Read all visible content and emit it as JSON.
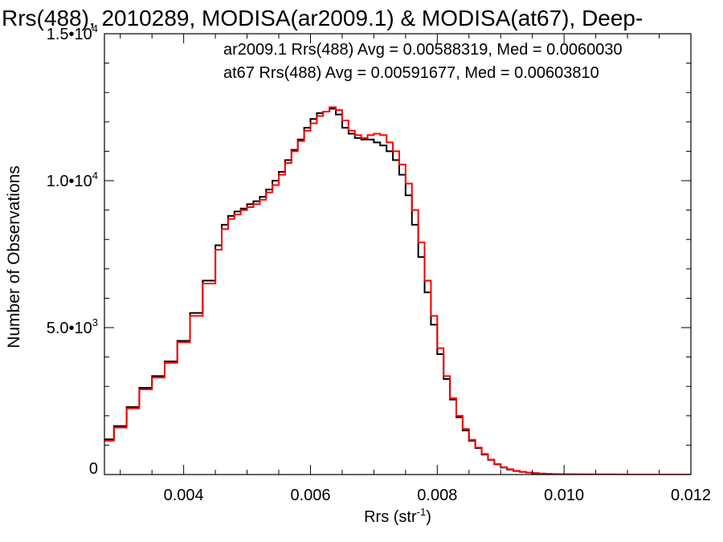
{
  "chart_data": {
    "type": "line",
    "style": "step-histogram",
    "title": "Rrs(488), 2010289, MODISA(ar2009.1) & MODISA(at67), Deep-",
    "xlabel": "Rrs (str",
    "xlabel_sup": "-1",
    "xlabel_close": ")",
    "ylabel": "Number of Observations",
    "xlim": [
      0.00275,
      0.012
    ],
    "ylim": [
      0,
      15000
    ],
    "x_ticks": [
      0.004,
      0.006,
      0.008,
      0.01,
      0.012
    ],
    "x_tick_labels": [
      "0.004",
      "0.006",
      "0.008",
      "0.010",
      "0.012"
    ],
    "y_ticks": [
      0,
      5000,
      10000,
      15000
    ],
    "y_tick_labels": [
      {
        "base": "0",
        "exp": ""
      },
      {
        "base": "5.0•10",
        "exp": "3"
      },
      {
        "base": "1.0•10",
        "exp": "4"
      },
      {
        "base": "1.5•10",
        "exp": "4"
      }
    ],
    "grid": false,
    "annotations": [
      {
        "text": "ar2009.1 Rrs(488) Avg = 0.00588319, Med = 0.0060030",
        "color": "#000000"
      },
      {
        "text": "at67 Rrs(488) Avg = 0.00591677, Med = 0.00603810",
        "color": "#ff0000"
      }
    ],
    "series": [
      {
        "name": "ar2009.1",
        "color": "#000000",
        "x": [
          0.00275,
          0.0029,
          0.0031,
          0.0033,
          0.0035,
          0.0037,
          0.0039,
          0.0041,
          0.0043,
          0.0045,
          0.0046,
          0.0047,
          0.0048,
          0.0049,
          0.005,
          0.0051,
          0.0052,
          0.0053,
          0.0054,
          0.0055,
          0.0056,
          0.0057,
          0.0058,
          0.0059,
          0.006,
          0.0061,
          0.0062,
          0.0063,
          0.0064,
          0.0065,
          0.0066,
          0.0067,
          0.0068,
          0.0069,
          0.007,
          0.0071,
          0.0072,
          0.0073,
          0.0074,
          0.0075,
          0.0076,
          0.0077,
          0.0078,
          0.0079,
          0.008,
          0.0081,
          0.0082,
          0.0083,
          0.0084,
          0.0085,
          0.0086,
          0.0087,
          0.0088,
          0.0089,
          0.009,
          0.0091,
          0.0092,
          0.0093,
          0.0094,
          0.0095,
          0.0096,
          0.0097,
          0.0098,
          0.0099,
          0.01,
          0.0102,
          0.0104,
          0.0106,
          0.0108,
          0.011,
          0.0112,
          0.0114,
          0.0116,
          0.0118,
          0.012
        ],
        "values": [
          1200,
          1650,
          2300,
          2950,
          3350,
          3850,
          4550,
          5500,
          6600,
          7800,
          8500,
          8800,
          8950,
          9050,
          9200,
          9300,
          9450,
          9700,
          10000,
          10300,
          10700,
          11050,
          11400,
          11800,
          12100,
          12300,
          12350,
          12450,
          12250,
          11800,
          11600,
          11450,
          11400,
          11400,
          11300,
          11200,
          11000,
          10700,
          10200,
          9500,
          8500,
          7400,
          6200,
          5100,
          4100,
          3250,
          2550,
          1950,
          1500,
          1150,
          900,
          680,
          500,
          350,
          240,
          170,
          120,
          90,
          65,
          45,
          30,
          20,
          15,
          10,
          8,
          5,
          3,
          2,
          1,
          1,
          0,
          0,
          0,
          0,
          0
        ]
      },
      {
        "name": "at67",
        "color": "#ff0000",
        "x": [
          0.00275,
          0.0029,
          0.0031,
          0.0033,
          0.0035,
          0.0037,
          0.0039,
          0.0041,
          0.0043,
          0.0045,
          0.0046,
          0.0047,
          0.0048,
          0.0049,
          0.005,
          0.0051,
          0.0052,
          0.0053,
          0.0054,
          0.0055,
          0.0056,
          0.0057,
          0.0058,
          0.0059,
          0.006,
          0.0061,
          0.0062,
          0.0063,
          0.0064,
          0.0065,
          0.0066,
          0.0067,
          0.0068,
          0.0069,
          0.007,
          0.0071,
          0.0072,
          0.0073,
          0.0074,
          0.0075,
          0.0076,
          0.0077,
          0.0078,
          0.0079,
          0.008,
          0.0081,
          0.0082,
          0.0083,
          0.0084,
          0.0085,
          0.0086,
          0.0087,
          0.0088,
          0.0089,
          0.009,
          0.0091,
          0.0092,
          0.0093,
          0.0094,
          0.0095,
          0.0096,
          0.0097,
          0.0098,
          0.0099,
          0.01,
          0.0102,
          0.0104,
          0.0106,
          0.0108,
          0.011,
          0.0112,
          0.0114,
          0.0116,
          0.0118,
          0.012
        ],
        "values": [
          1150,
          1600,
          2250,
          2900,
          3300,
          3800,
          4500,
          5400,
          6500,
          7650,
          8350,
          8700,
          8850,
          9000,
          9100,
          9200,
          9350,
          9600,
          9850,
          10200,
          10600,
          11000,
          11350,
          11700,
          11950,
          12200,
          12350,
          12500,
          12400,
          12050,
          11700,
          11550,
          11450,
          11550,
          11600,
          11550,
          11300,
          11000,
          10550,
          9900,
          9000,
          7900,
          6600,
          5400,
          4300,
          3350,
          2600,
          2000,
          1550,
          1180,
          920,
          700,
          510,
          360,
          250,
          180,
          125,
          95,
          70,
          50,
          35,
          25,
          18,
          12,
          9,
          6,
          4,
          3,
          2,
          1,
          1,
          0,
          0,
          0,
          0
        ]
      }
    ]
  }
}
